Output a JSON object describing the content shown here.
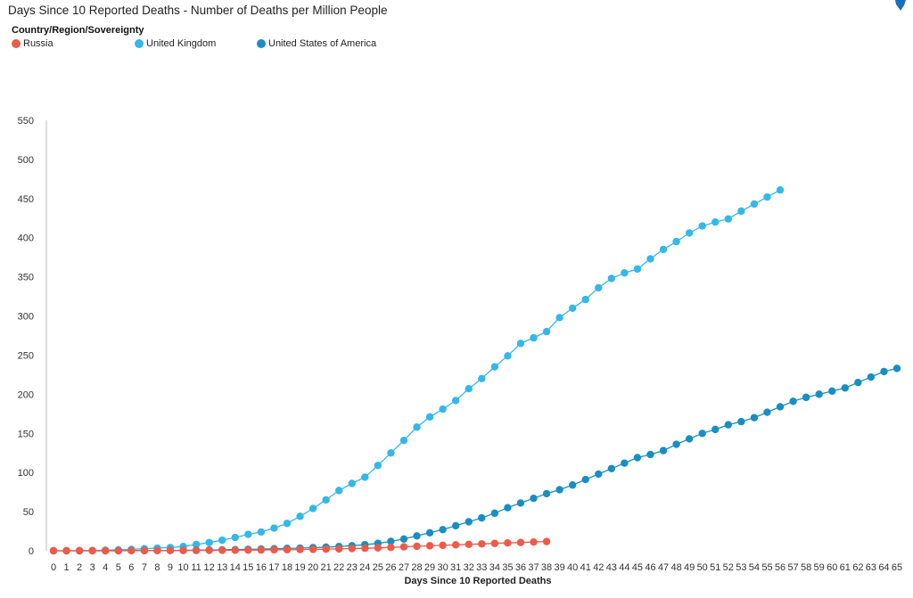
{
  "chart_data": {
    "type": "line",
    "title": "Days Since 10 Reported Deaths - Number of Deaths per Million People",
    "legend_title": "Country/Region/Sovereignty",
    "legend_placement": "top-left",
    "xlabel": "Days Since 10 Reported Deaths",
    "ylabel": "",
    "xlim": [
      0,
      65
    ],
    "ylim": [
      0,
      550
    ],
    "yticks": [
      0,
      50,
      100,
      150,
      200,
      250,
      300,
      350,
      400,
      450,
      500,
      550
    ],
    "grid": false,
    "series": [
      {
        "name": "Russia",
        "color": "#ee5a49",
        "x": [
          0,
          1,
          2,
          3,
          4,
          5,
          6,
          7,
          8,
          9,
          10,
          11,
          12,
          13,
          14,
          15,
          16,
          17,
          18,
          19,
          20,
          21,
          22,
          23,
          24,
          25,
          26,
          27,
          28,
          29,
          30,
          31,
          32,
          33,
          34,
          35,
          36,
          37,
          38
        ],
        "values": [
          0,
          0,
          0,
          0,
          0,
          0,
          0.1,
          0.1,
          0.2,
          0.2,
          0.3,
          0.4,
          0.5,
          0.6,
          0.7,
          0.8,
          1.0,
          1.2,
          1.4,
          1.6,
          1.8,
          2.1,
          2.4,
          2.8,
          3.2,
          3.7,
          4.3,
          5.0,
          5.7,
          6.4,
          7.0,
          7.6,
          8.2,
          8.8,
          9.4,
          10.0,
          10.6,
          11.2,
          11.8
        ]
      },
      {
        "name": "United Kingdom",
        "color": "#35b7e8",
        "x": [
          0,
          1,
          2,
          3,
          4,
          5,
          6,
          7,
          8,
          9,
          10,
          11,
          12,
          13,
          14,
          15,
          16,
          17,
          18,
          19,
          20,
          21,
          22,
          23,
          24,
          25,
          26,
          27,
          28,
          29,
          30,
          31,
          32,
          33,
          34,
          35,
          36,
          37,
          38,
          39,
          40,
          41,
          42,
          43,
          44,
          45,
          46,
          47,
          48,
          49,
          50,
          51,
          52,
          53,
          54,
          55,
          56
        ],
        "values": [
          0,
          0,
          0.2,
          0.4,
          0.7,
          1.2,
          1.8,
          2.6,
          3.4,
          4.1,
          5.5,
          8,
          10.5,
          13.5,
          17,
          21,
          24,
          29,
          35,
          44,
          54,
          65,
          77,
          86,
          94,
          109,
          125,
          141,
          158,
          171,
          181,
          192,
          207,
          220,
          235,
          249,
          265,
          272,
          280,
          298,
          310,
          321,
          336,
          348,
          355,
          360,
          373,
          385,
          395,
          406,
          415,
          420,
          424,
          434,
          443,
          452,
          461
        ]
      },
      {
        "name": "United States of America",
        "color": "#1a8ec0",
        "x": [
          0,
          1,
          2,
          3,
          4,
          5,
          6,
          7,
          8,
          9,
          10,
          11,
          12,
          13,
          14,
          15,
          16,
          17,
          18,
          19,
          20,
          21,
          22,
          23,
          24,
          25,
          26,
          27,
          28,
          29,
          30,
          31,
          32,
          33,
          34,
          35,
          36,
          37,
          38,
          39,
          40,
          41,
          42,
          43,
          44,
          45,
          46,
          47,
          48,
          49,
          50,
          51,
          52,
          53,
          54,
          55,
          56,
          57,
          58,
          59,
          60,
          61,
          62,
          63,
          64,
          65
        ],
        "values": [
          0,
          0,
          0,
          0,
          0,
          0.1,
          0.2,
          0.3,
          0.4,
          0.5,
          0.6,
          0.8,
          1.0,
          1.2,
          1.5,
          1.8,
          2.2,
          2.6,
          3.0,
          3.4,
          4.0,
          4.6,
          5.5,
          6.5,
          7.8,
          9.5,
          12,
          15,
          19,
          23,
          27,
          32,
          37,
          42,
          48,
          55,
          61,
          67,
          73,
          78,
          84,
          91,
          98,
          105,
          112,
          119,
          123,
          128,
          136,
          143,
          150,
          155,
          161,
          165,
          170,
          177,
          184,
          191,
          196,
          200,
          204,
          208,
          215,
          222,
          229,
          233
        ]
      }
    ]
  }
}
